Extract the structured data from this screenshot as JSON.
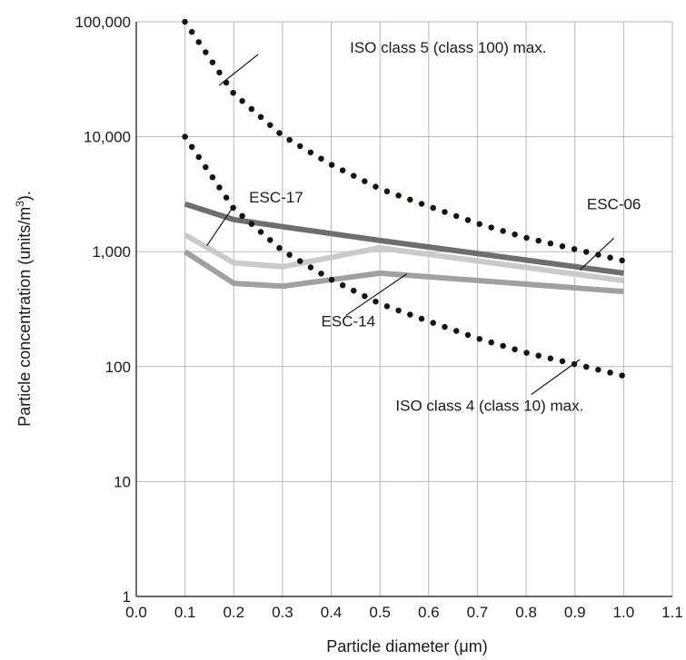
{
  "chart_data": {
    "type": "line",
    "xlabel": "Particle diameter (μm)",
    "ylabel": "Particle concentration (units/m",
    "ylabel_sup": "3",
    "ylabel_suffix": ").",
    "xlim": [
      0.0,
      1.1
    ],
    "ylim": [
      1,
      100000
    ],
    "y_scale": "log",
    "grid": true,
    "x_ticks": [
      "0.0",
      "0.1",
      "0.2",
      "0.3",
      "0.4",
      "0.5",
      "0.6",
      "0.7",
      "0.8",
      "0.9",
      "1.0",
      "1.1"
    ],
    "y_ticks": [
      {
        "value": 1,
        "label": "1"
      },
      {
        "value": 10,
        "label": "10"
      },
      {
        "value": 100,
        "label": "100"
      },
      {
        "value": 1000,
        "label": "1,000"
      },
      {
        "value": 10000,
        "label": "10,000"
      },
      {
        "value": 100000,
        "label": "100,000"
      }
    ],
    "series": [
      {
        "name": "ISO class 5 (class 100) max.",
        "style": "dotted",
        "color": "#1a1110",
        "x": [
          0.1,
          0.2,
          0.3,
          0.4,
          0.5,
          0.6,
          0.7,
          0.8,
          0.9,
          1.0
        ],
        "y": [
          100000,
          23700,
          10200,
          5720,
          3520,
          2480,
          1760,
          1320,
          1050,
          832
        ]
      },
      {
        "name": "ISO class 4 (class 10) max.",
        "style": "dotted",
        "color": "#1a1110",
        "x": [
          0.1,
          0.2,
          0.3,
          0.4,
          0.5,
          0.6,
          0.7,
          0.8,
          0.9,
          1.0
        ],
        "y": [
          10000,
          2370,
          1020,
          572,
          352,
          248,
          176,
          132,
          105,
          83
        ]
      },
      {
        "name": "ESC-06",
        "style": "solid",
        "color": "#6e6e6e",
        "x": [
          0.1,
          0.2,
          0.3,
          0.5,
          1.0
        ],
        "y": [
          2600,
          1900,
          1650,
          1250,
          650
        ]
      },
      {
        "name": "ESC-17",
        "style": "solid",
        "color": "#cacaca",
        "x": [
          0.1,
          0.2,
          0.3,
          0.5,
          1.0
        ],
        "y": [
          1400,
          800,
          740,
          1080,
          560
        ]
      },
      {
        "name": "ESC-14",
        "style": "solid",
        "color": "#a0a0a0",
        "x": [
          0.1,
          0.2,
          0.3,
          0.5,
          1.0
        ],
        "y": [
          1000,
          530,
          500,
          650,
          450
        ]
      }
    ],
    "annotations": [
      {
        "text": "ISO class 5 (class 100) max.",
        "text_at": [
          0.64,
          60000
        ],
        "pointer_from": [
          0.25,
          52000
        ],
        "pointer_to": [
          0.17,
          28000
        ],
        "anchor": "middle"
      },
      {
        "text": "ESC-17",
        "text_at": [
          0.287,
          3000
        ],
        "pointer_from": [
          0.2,
          2500
        ],
        "pointer_to": [
          0.145,
          1130
        ],
        "anchor": "middle"
      },
      {
        "text": "ESC-06",
        "text_at": [
          0.98,
          2600
        ],
        "pointer_from": [
          0.98,
          1310
        ],
        "pointer_to": [
          0.91,
          690
        ],
        "anchor": "middle"
      },
      {
        "text": "ESC-14",
        "text_at": [
          0.435,
          250
        ],
        "pointer_from": [
          0.43,
          278
        ],
        "pointer_to": [
          0.555,
          640
        ],
        "anchor": "middle"
      },
      {
        "text": "ISO class 4 (class 10) max.",
        "text_at": [
          0.725,
          46
        ],
        "pointer_from": [
          0.81,
          57
        ],
        "pointer_to": [
          0.91,
          115
        ],
        "anchor": "middle"
      }
    ]
  }
}
